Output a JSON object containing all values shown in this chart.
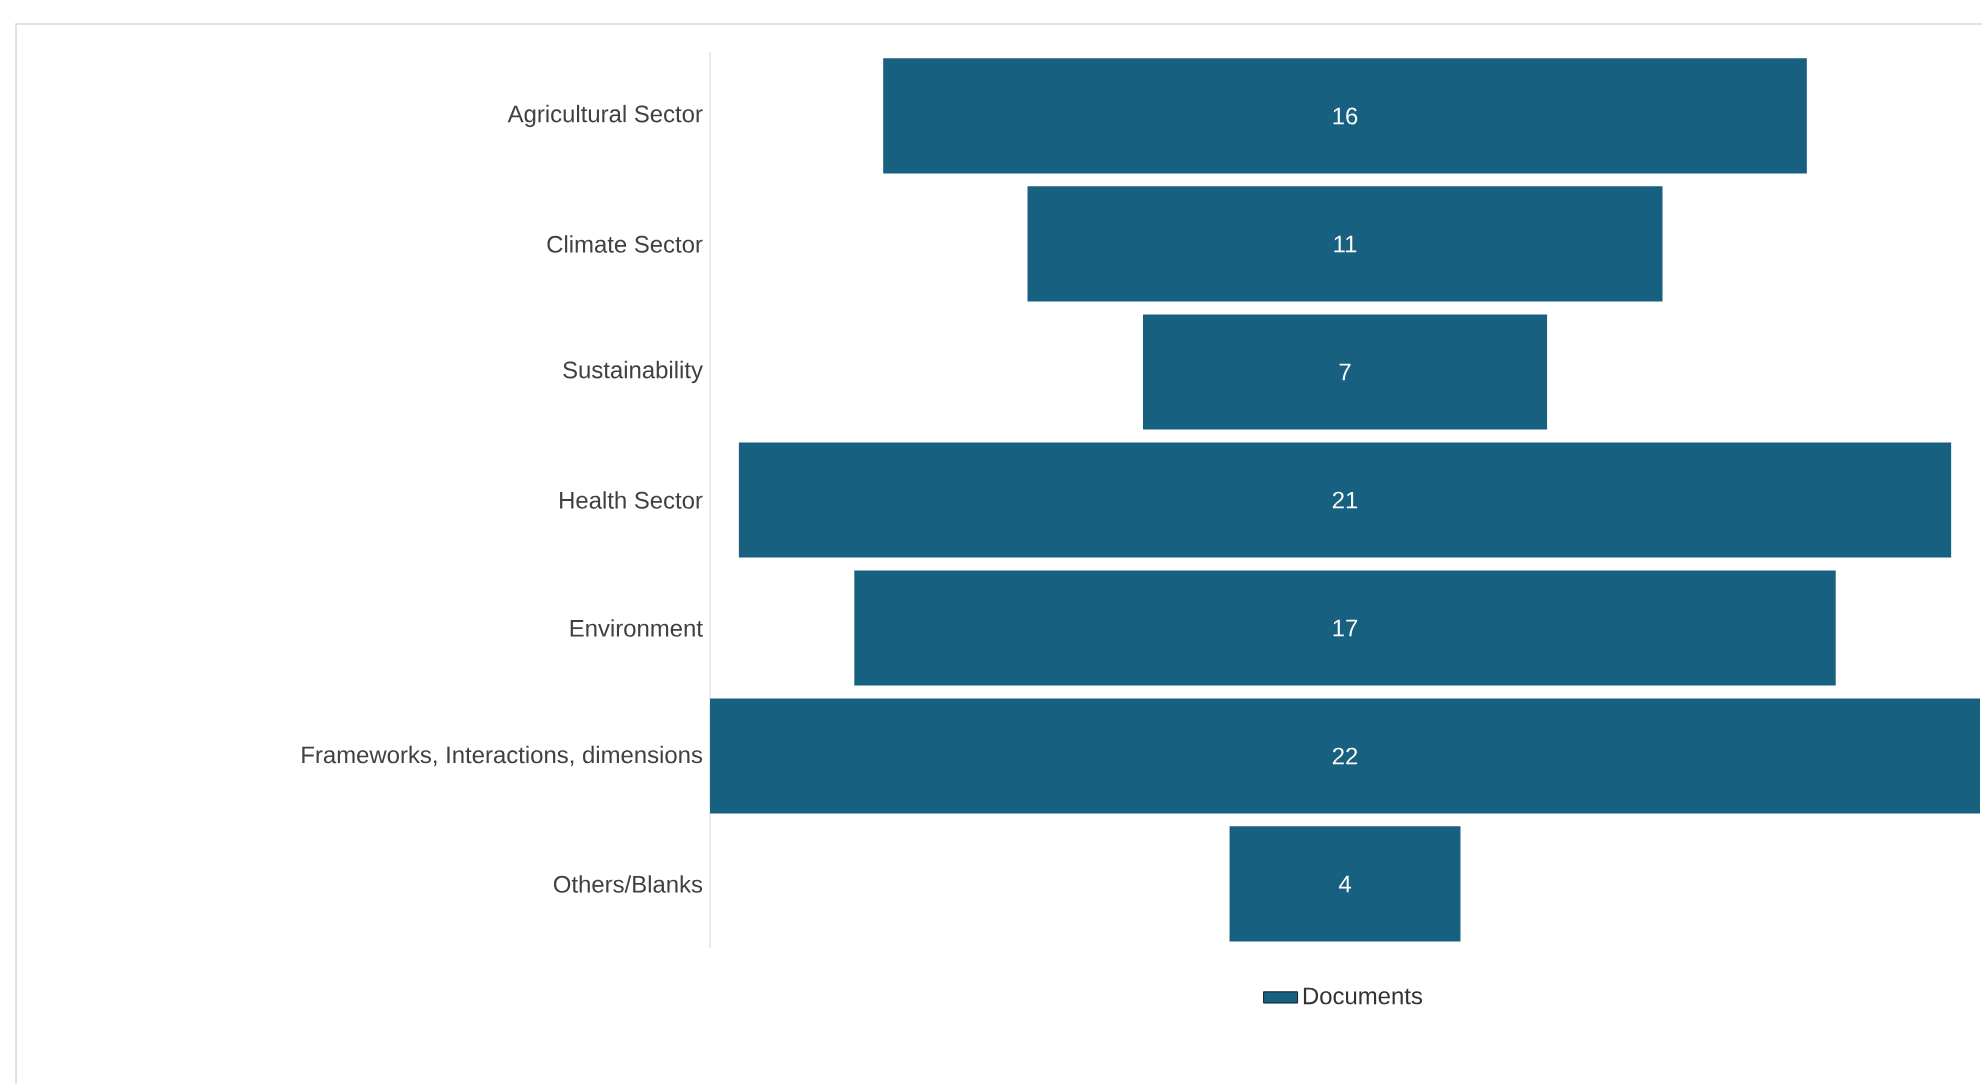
{
  "chart_data": {
    "type": "other",
    "categories": [
      "Agricultural Sector",
      "Climate Sector",
      "Sustainability",
      "Health Sector",
      "Environment",
      "Frameworks, Interactions, dimensions",
      "Others/Blanks"
    ],
    "series": [
      {
        "name": "Documents",
        "color": "#17607f",
        "values": [
          16,
          11,
          7,
          21,
          17,
          22,
          4
        ]
      }
    ],
    "data_labels": true,
    "legend": "bottom"
  }
}
